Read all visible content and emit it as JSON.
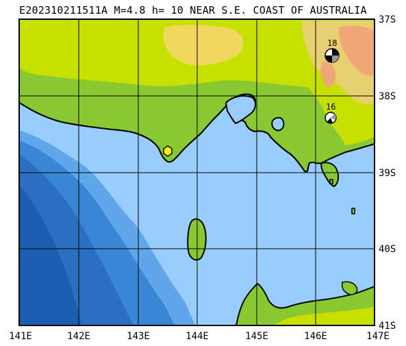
{
  "title": "E202310211511A M=4.8 h= 10 NEAR S.E. COAST OF AUSTRALIA",
  "axes": {
    "lat_labels": [
      "37S",
      "38S",
      "39S",
      "40S",
      "41S"
    ],
    "lon_labels": [
      "141E",
      "142E",
      "143E",
      "144E",
      "145E",
      "146E",
      "147E"
    ]
  },
  "events": [
    {
      "label": "18",
      "type": "focal-mechanism"
    },
    {
      "label": "16",
      "type": "focal-mechanism"
    }
  ],
  "epicenter": {
    "type": "hexagon-marker"
  },
  "colors": {
    "deep_ocean": "#1a5fb0",
    "mid_ocean": "#3a86d6",
    "shelf_ocean": "#99ccff",
    "lowland": "#88c832",
    "upland": "#c8e000",
    "highland": "#f0d860",
    "peaks": "#f0a878",
    "epicenter": "#ffee00"
  }
}
